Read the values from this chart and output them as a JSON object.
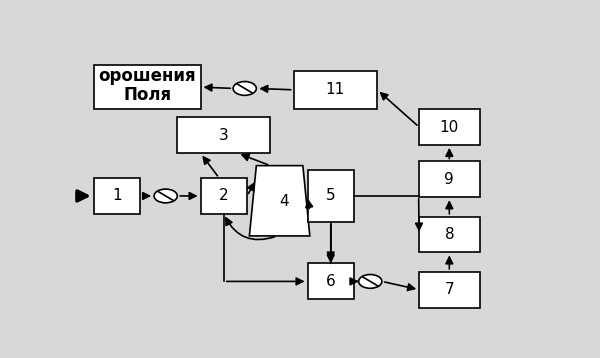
{
  "bg_color": "#d8d8d8",
  "box_color": "#ffffff",
  "box_edge": "#000000",
  "arrow_color": "#000000",
  "b1": [
    0.04,
    0.38,
    0.1,
    0.13
  ],
  "b2": [
    0.27,
    0.38,
    0.1,
    0.13
  ],
  "b3": [
    0.22,
    0.6,
    0.2,
    0.13
  ],
  "b5": [
    0.5,
    0.35,
    0.1,
    0.19
  ],
  "b6": [
    0.5,
    0.07,
    0.1,
    0.13
  ],
  "b7": [
    0.74,
    0.04,
    0.13,
    0.13
  ],
  "b8": [
    0.74,
    0.24,
    0.13,
    0.13
  ],
  "b9": [
    0.74,
    0.44,
    0.13,
    0.13
  ],
  "b10": [
    0.74,
    0.63,
    0.13,
    0.13
  ],
  "b11": [
    0.47,
    0.76,
    0.18,
    0.14
  ],
  "bf": [
    0.04,
    0.76,
    0.23,
    0.16
  ],
  "trap4": {
    "xl": 0.38,
    "yt": 0.3,
    "xtl": 0.375,
    "xtr": 0.5,
    "xbl": 0.4,
    "xbr": 0.5,
    "yb": 0.55
  },
  "valve1": [
    0.195,
    0.445
  ],
  "valve2": [
    0.635,
    0.135
  ],
  "valve3": [
    0.365,
    0.835
  ],
  "fields_text1": "Поля",
  "fields_text2": "орошения",
  "lw": 1.2,
  "lw_fat": 2.5,
  "fs": 11
}
